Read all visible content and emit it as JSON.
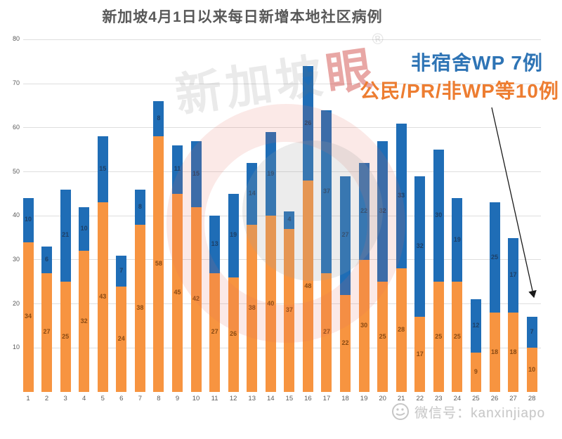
{
  "title": "新加坡4月1日以来每日新增本地社区病例",
  "annotation": {
    "line1": "非宿舍WP 7例",
    "line2": "公民/PR/非WP等10例"
  },
  "footer": {
    "wechat_label": "微信号：kanxinjiapo"
  },
  "watermark": {
    "logo_text_main": "新加坡",
    "logo_text_last": "眼",
    "reg_mark": "®"
  },
  "colors": {
    "bar_blue": "#1f6db6",
    "bar_orange": "#f79440",
    "annotation_blue": "#2e74b5",
    "annotation_orange": "#ed7d31",
    "title_gray": "#595959",
    "axis_gray": "#595959",
    "gridline": "#dedede",
    "label_on_orange": "#8a4a12",
    "label_on_blue": "#1d3f66",
    "arrow_black": "#1a1a1a"
  },
  "chart_data": {
    "type": "bar",
    "stacked": true,
    "title": "新加坡4月1日以来每日新增本地社区病例",
    "categories": [
      "1",
      "2",
      "3",
      "4",
      "5",
      "6",
      "7",
      "8",
      "9",
      "10",
      "11",
      "12",
      "13",
      "14",
      "15",
      "16",
      "17",
      "18",
      "19",
      "20",
      "21",
      "22",
      "23",
      "24",
      "25",
      "26",
      "27",
      "28"
    ],
    "series": [
      {
        "name": "公民/PR/非WP等",
        "color_key": "bar_orange",
        "values": [
          34,
          27,
          25,
          32,
          43,
          24,
          38,
          58,
          45,
          42,
          27,
          26,
          38,
          40,
          37,
          48,
          27,
          22,
          30,
          25,
          28,
          17,
          25,
          25,
          9,
          18,
          18,
          10
        ]
      },
      {
        "name": "非宿舍WP",
        "color_key": "bar_blue",
        "values": [
          10,
          6,
          21,
          10,
          15,
          7,
          8,
          8,
          11,
          15,
          13,
          19,
          14,
          19,
          4,
          26,
          37,
          27,
          22,
          32,
          33,
          32,
          30,
          19,
          12,
          25,
          17,
          7
        ]
      }
    ],
    "totals": [
      44,
      33,
      46,
      42,
      58,
      31,
      46,
      66,
      56,
      57,
      40,
      45,
      52,
      59,
      41,
      74,
      64,
      49,
      52,
      57,
      61,
      49,
      55,
      44,
      21,
      43,
      35,
      17
    ],
    "ylim": [
      0,
      80
    ],
    "yticks": [
      10,
      20,
      30,
      40,
      50,
      60,
      70,
      80
    ],
    "xlabel": "",
    "ylabel": "",
    "grid": true,
    "legend": "none",
    "data_labels": "each segment labeled with its value",
    "annotations": [
      {
        "text": "非宿舍WP 7例",
        "applies_to": "blue segment of day 28"
      },
      {
        "text": "公民/PR/非WP等10例",
        "applies_to": "orange segment of day 28"
      }
    ]
  }
}
